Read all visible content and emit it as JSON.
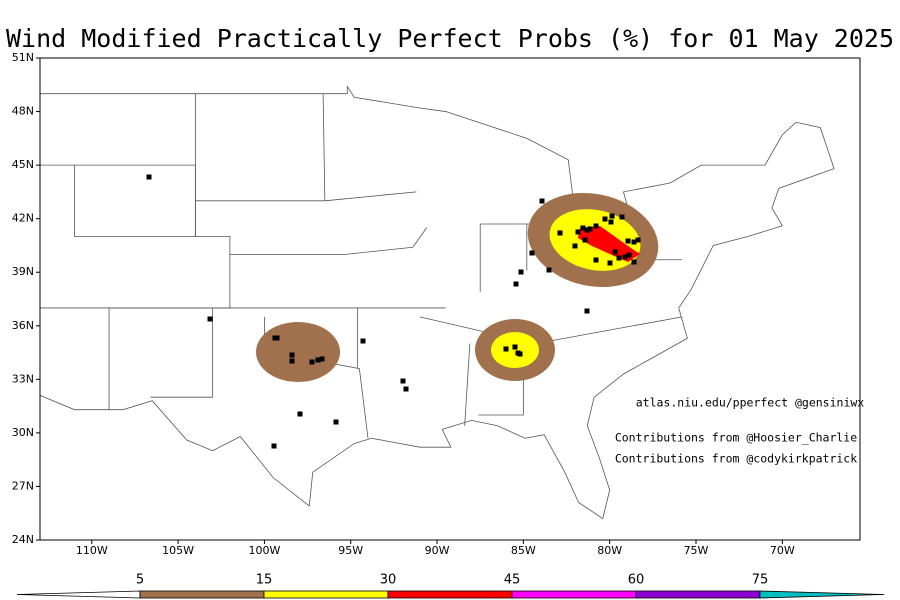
{
  "title": "Wind Modified Practically Perfect Probs (%) for 01 May 2025",
  "map": {
    "lonlim": [
      -113,
      -65.5
    ],
    "latlim": [
      24,
      51
    ],
    "lon_ticks": [
      {
        "value": -110,
        "label": "110W"
      },
      {
        "value": -105,
        "label": "105W"
      },
      {
        "value": -100,
        "label": "100W"
      },
      {
        "value": -95,
        "label": "95W"
      },
      {
        "value": -90,
        "label": "90W"
      },
      {
        "value": -85,
        "label": "85W"
      },
      {
        "value": -80,
        "label": "80W"
      },
      {
        "value": -75,
        "label": "75W"
      },
      {
        "value": -70,
        "label": "70W"
      }
    ],
    "lat_ticks": [
      {
        "value": 24,
        "label": "24N"
      },
      {
        "value": 27,
        "label": "27N"
      },
      {
        "value": 30,
        "label": "30N"
      },
      {
        "value": 33,
        "label": "33N"
      },
      {
        "value": 36,
        "label": "36N"
      },
      {
        "value": 39,
        "label": "39N"
      },
      {
        "value": 42,
        "label": "42N"
      },
      {
        "value": 45,
        "label": "45N"
      },
      {
        "value": 48,
        "label": "48N"
      },
      {
        "value": 51,
        "label": "51N"
      }
    ]
  },
  "annotations": [
    "atlas.niu.edu/pperfect @gensiniwx",
    "Contributions from @Hoosier_Charlie",
    "Contributions from @codykirkpatrick"
  ],
  "colorbar": {
    "levels": [
      5,
      15,
      30,
      45,
      60,
      75
    ],
    "colors": [
      "#ffffff",
      "#a0714c",
      "#ffff00",
      "#ff0000",
      "#ff00ff",
      "#8c00d4",
      "#00c0c0"
    ]
  }
}
